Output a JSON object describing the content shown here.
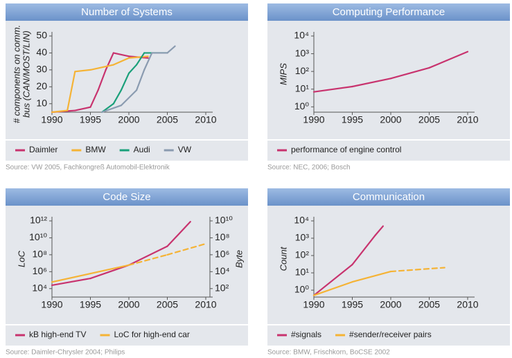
{
  "chart_data": [
    {
      "type": "line",
      "title": "Number of Systems",
      "ylabel": [
        "# components on comm.",
        "bus (CAN/MOST/LIN)"
      ],
      "xlim": [
        1990,
        2010
      ],
      "xticks": [
        1990,
        1995,
        2000,
        2005,
        2010
      ],
      "ylim": [
        5,
        50
      ],
      "yticks": [
        10,
        20,
        30,
        40,
        50
      ],
      "series": [
        {
          "name": "Daimler",
          "color": "#c8336e",
          "x": [
            1990,
            1993,
            1995,
            1996,
            1997,
            1998,
            2000,
            2002.5
          ],
          "values": [
            5,
            6,
            8,
            18,
            30,
            40,
            38,
            37
          ]
        },
        {
          "name": "BMW",
          "color": "#f5b335",
          "x": [
            1990,
            1992,
            1993,
            1995,
            1998,
            2000,
            2002.5
          ],
          "values": [
            5,
            6,
            29,
            30,
            33,
            37,
            38
          ]
        },
        {
          "name": "Audi",
          "color": "#1aa07a",
          "x": [
            1996.5,
            1998,
            1999,
            2000,
            2001,
            2002,
            2005
          ],
          "values": [
            5,
            10,
            18,
            28,
            33,
            40,
            40
          ]
        },
        {
          "name": "VW",
          "color": "#8a9bb0",
          "x": [
            1996.5,
            1999,
            2001,
            2002,
            2003,
            2005,
            2006
          ],
          "values": [
            5,
            9,
            18,
            30,
            40,
            40,
            44
          ]
        }
      ],
      "source": "Source: VW 2005, Fachkongreß Automobil-Elektronik"
    },
    {
      "type": "line",
      "title": "Computing Performance",
      "ylabel": "MIPS",
      "log": true,
      "xlim": [
        1990,
        2010
      ],
      "xticks": [
        1990,
        1995,
        2000,
        2005,
        2010
      ],
      "ylim": [
        0.5,
        10000
      ],
      "yticks": [
        {
          "value": 1,
          "label": "10⁰"
        },
        {
          "value": 10,
          "label": "10¹"
        },
        {
          "value": 100,
          "label": "10²"
        },
        {
          "value": 1000,
          "label": "10³"
        },
        {
          "value": 10000,
          "label": "10⁴"
        }
      ],
      "series": [
        {
          "name": "performance of engine control",
          "color": "#c8336e",
          "x": [
            1990,
            1995,
            2000,
            2005,
            2010
          ],
          "values": [
            7,
            14,
            40,
            160,
            1300
          ]
        }
      ],
      "source": "Source: NEC, 2006; Bosch"
    },
    {
      "type": "line",
      "title": "Code Size",
      "ylabel": "LoC",
      "y2label": "Byte",
      "log": true,
      "xlim": [
        1990,
        2010
      ],
      "xticks": [
        1990,
        1995,
        2000,
        2005,
        2010
      ],
      "ylim": [
        1000,
        1000000000000
      ],
      "y2lim": [
        10,
        10000000000
      ],
      "yticks": [
        {
          "value": 10000,
          "label": "10⁴"
        },
        {
          "value": 1000000,
          "label": "10⁶"
        },
        {
          "value": 100000000,
          "label": "10⁸"
        },
        {
          "value": 10000000000,
          "label": "10¹⁰"
        },
        {
          "value": 1000000000000,
          "label": "10¹²"
        }
      ],
      "y2ticks": [
        {
          "value": 100,
          "label": "10²"
        },
        {
          "value": 10000,
          "label": "10⁴"
        },
        {
          "value": 1000000,
          "label": "10⁶"
        },
        {
          "value": 100000000,
          "label": "10⁸"
        },
        {
          "value": 10000000000,
          "label": "10¹⁰"
        }
      ],
      "series": [
        {
          "name": "kB high-end TV",
          "color": "#c8336e",
          "axis": "y2",
          "x": [
            1990,
            1995,
            2000,
            2005,
            2008
          ],
          "values": [
            250,
            1600,
            60000,
            10000000,
            8000000000
          ]
        },
        {
          "name": "LoC for high-end car",
          "color": "#f5b335",
          "dashed_from": 2000,
          "x": [
            1990,
            1995,
            2000,
            2005,
            2010
          ],
          "values": [
            60000,
            600000,
            6000000,
            100000000,
            2000000000
          ]
        }
      ],
      "source": "Source: Daimler-Chrysler 2004; Philips"
    },
    {
      "type": "line",
      "title": "Communication",
      "ylabel": "Count",
      "log": true,
      "xlim": [
        1990,
        2010
      ],
      "xticks": [
        1990,
        1995,
        2000,
        2005,
        2010
      ],
      "ylim": [
        0.4,
        10000
      ],
      "yticks": [
        {
          "value": 1,
          "label": "10⁰"
        },
        {
          "value": 10,
          "label": "10¹"
        },
        {
          "value": 100,
          "label": "10²"
        },
        {
          "value": 1000,
          "label": "10³"
        },
        {
          "value": 10000,
          "label": "10⁴"
        }
      ],
      "series": [
        {
          "name": "#signals",
          "color": "#c8336e",
          "x": [
            1990,
            1995,
            1998,
            1999
          ],
          "values": [
            0.5,
            30,
            1500,
            5000
          ]
        },
        {
          "name": "#sender/receiver pairs",
          "color": "#f5b335",
          "dashed_from": 2000,
          "x": [
            1990,
            1995,
            2000,
            2007
          ],
          "values": [
            0.5,
            3,
            12,
            20
          ]
        }
      ],
      "source": "Source: BMW, Frischkorn, BoCSE 2002"
    }
  ]
}
